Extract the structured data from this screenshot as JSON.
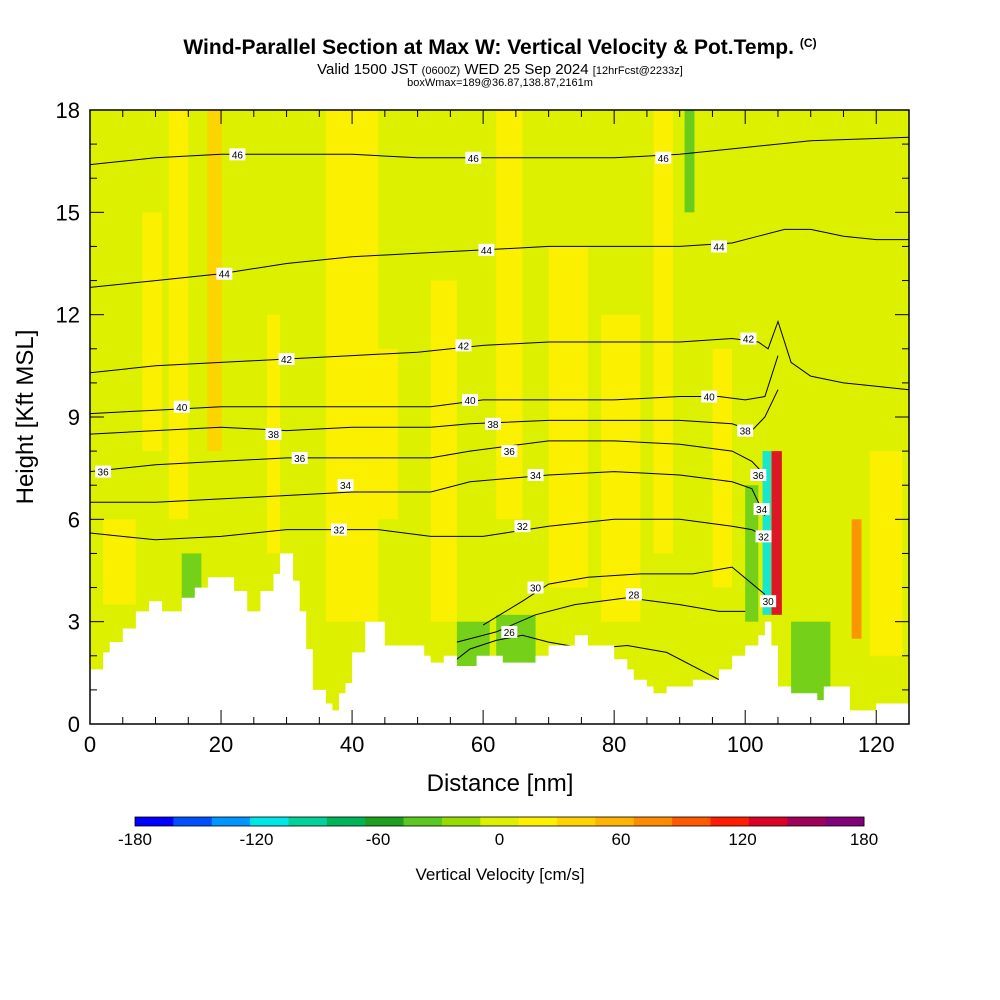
{
  "header": {
    "title": "Wind-Parallel Section at Max W: Vertical Velocity & Pot.Temp.",
    "title_mark": "(C)",
    "valid_label": "Valid 1500 JST",
    "valid_utc": "(0600Z)",
    "valid_date": "WED 25 Sep 2024",
    "forecast_info": "[12hrFcst@2233z]",
    "box_info": "boxWmax=189@36.87,138.87,2161m"
  },
  "chart_data": {
    "type": "heatmap",
    "xlabel": "Distance [nm]",
    "ylabel": "Height [Kft MSL]",
    "xlim": [
      0,
      125
    ],
    "ylim": [
      0,
      18
    ],
    "x_ticks": [
      0,
      20,
      40,
      60,
      80,
      100,
      120
    ],
    "y_ticks": [
      0,
      3,
      6,
      9,
      12,
      15,
      18
    ],
    "grid": false,
    "background_field": "Vertical Velocity [cm/s]",
    "colorbar": {
      "label": "Vertical Velocity [cm/s]",
      "min": -180,
      "max": 180,
      "tick_values": [
        -180,
        -120,
        -60,
        0,
        60,
        120,
        180
      ],
      "colors": [
        "#0000ff",
        "#0050ff",
        "#0096ff",
        "#00e6e6",
        "#00d29a",
        "#00b45a",
        "#1ea01e",
        "#5ac81e",
        "#96dc00",
        "#dcf000",
        "#fff000",
        "#ffd200",
        "#ffb400",
        "#ff8c00",
        "#ff5a00",
        "#ff1e00",
        "#dc0028",
        "#a0005a",
        "#820078"
      ]
    },
    "updraft_columns": [
      {
        "x": 19,
        "w": 2.2,
        "h_bottom": 8,
        "h_top": 18,
        "value": 45,
        "color": "#ffd200"
      },
      {
        "x": 104.8,
        "w": 1.6,
        "h_bottom": 3.2,
        "h_top": 8,
        "value": 150,
        "color": "#dc0028"
      },
      {
        "x": 117,
        "w": 1.5,
        "h_bottom": 2.5,
        "h_top": 6,
        "value": 80,
        "color": "#ff8c00"
      }
    ],
    "downdraft_columns": [
      {
        "x": 103.3,
        "w": 1.3,
        "h_bottom": 3.2,
        "h_top": 8,
        "value": -120,
        "color": "#00e6e6"
      },
      {
        "x": 91.5,
        "w": 1.5,
        "h_bottom": 15,
        "h_top": 18,
        "value": -40,
        "color": "#5ac81e"
      }
    ],
    "terrain": {
      "x": [
        0,
        2,
        2,
        3,
        3,
        5,
        5,
        7,
        7,
        9,
        9,
        11,
        11,
        14,
        14,
        16,
        16,
        18,
        18,
        22,
        22,
        24,
        24,
        26,
        26,
        28,
        28,
        29,
        29,
        31,
        31,
        32,
        32,
        33,
        33,
        34,
        34,
        36,
        36,
        37,
        37,
        38,
        38,
        39,
        39,
        40,
        40,
        42,
        42,
        45,
        45,
        51,
        51,
        52,
        52,
        54,
        54,
        56,
        56,
        59,
        59,
        63,
        63,
        68,
        68,
        70,
        70,
        74,
        74,
        76,
        76,
        80,
        80,
        82,
        82,
        83,
        83,
        85,
        85,
        86,
        86,
        88,
        88,
        92,
        92,
        96,
        96,
        98,
        98,
        100,
        100,
        102,
        102,
        103,
        103,
        104,
        104,
        105,
        105,
        107,
        107,
        111,
        111,
        112,
        112,
        116,
        116,
        120,
        120,
        125
      ],
      "height": [
        1.6,
        1.6,
        2.1,
        2.1,
        2.4,
        2.4,
        2.8,
        2.8,
        3.3,
        3.3,
        3.6,
        3.6,
        3.3,
        3.3,
        3.7,
        3.7,
        4.0,
        4.0,
        4.3,
        4.3,
        3.9,
        3.9,
        3.3,
        3.3,
        3.9,
        3.9,
        4.4,
        4.4,
        5.0,
        5.0,
        4.2,
        4.2,
        3.3,
        3.3,
        2.2,
        2.2,
        1.0,
        1.0,
        0.6,
        0.6,
        0.4,
        0.4,
        0.9,
        0.9,
        1.2,
        1.2,
        2.1,
        2.1,
        3.0,
        3.0,
        2.3,
        2.3,
        2.0,
        2.0,
        1.8,
        1.8,
        2.0,
        2.0,
        1.7,
        1.7,
        2.0,
        2.0,
        1.8,
        1.8,
        2.0,
        2.0,
        2.3,
        2.3,
        2.6,
        2.6,
        2.3,
        2.3,
        1.9,
        1.9,
        1.6,
        1.6,
        1.3,
        1.3,
        1.1,
        1.1,
        0.9,
        0.9,
        1.1,
        1.1,
        1.3,
        1.3,
        1.6,
        1.6,
        2.0,
        2.0,
        2.3,
        2.3,
        2.6,
        2.6,
        3.0,
        3.0,
        2.3,
        2.3,
        1.1,
        1.1,
        0.9,
        0.9,
        0.7,
        0.7,
        1.1,
        1.1,
        0.4,
        0.4,
        0.6,
        0.6,
        0.3
      ]
    },
    "isentropes": [
      {
        "theta": 26,
        "x": [
          54,
          58,
          62,
          66,
          70,
          76,
          82,
          88,
          94,
          98
        ],
        "y": [
          1.6,
          2.2,
          2.45,
          2.6,
          2.4,
          2.2,
          2.3,
          2.1,
          1.5,
          1.1
        ]
      },
      {
        "theta": 28,
        "x": [
          56,
          62,
          68,
          74,
          82,
          90,
          96,
          100
        ],
        "y": [
          2.4,
          2.7,
          3.2,
          3.5,
          3.7,
          3.5,
          3.3,
          3.3
        ]
      },
      {
        "theta": 30,
        "x": [
          60,
          66,
          70,
          76,
          84,
          92,
          98,
          103
        ],
        "y": [
          2.9,
          3.6,
          4.1,
          4.3,
          4.4,
          4.4,
          4.6,
          3.8
        ]
      },
      {
        "theta": 32,
        "x": [
          0,
          10,
          20,
          30,
          37,
          44,
          52,
          60,
          70,
          80,
          90,
          98,
          101,
          103
        ],
        "y": [
          5.6,
          5.4,
          5.5,
          5.7,
          5.7,
          5.7,
          5.5,
          5.5,
          5.8,
          6.0,
          6.0,
          5.8,
          5.7,
          5.5
        ]
      },
      {
        "theta": 34,
        "x": [
          0,
          10,
          20,
          30,
          40,
          52,
          58,
          70,
          80,
          90,
          98,
          101,
          103
        ],
        "y": [
          6.5,
          6.5,
          6.6,
          6.7,
          6.8,
          6.8,
          7.1,
          7.3,
          7.4,
          7.3,
          7.1,
          6.9,
          6.1
        ]
      },
      {
        "theta": 36,
        "x": [
          0,
          10,
          20,
          30,
          40,
          52,
          58,
          70,
          80,
          90,
          98,
          101,
          102.5
        ],
        "y": [
          7.4,
          7.6,
          7.7,
          7.8,
          7.8,
          7.8,
          8.0,
          8.3,
          8.3,
          8.2,
          8.0,
          7.7,
          7.4
        ]
      },
      {
        "theta": 38,
        "x": [
          0,
          10,
          20,
          30,
          40,
          52,
          58,
          70,
          80,
          90,
          98,
          101,
          103,
          105
        ],
        "y": [
          8.5,
          8.6,
          8.7,
          8.6,
          8.7,
          8.7,
          8.8,
          8.9,
          8.9,
          8.9,
          8.8,
          8.6,
          9.0,
          9.8
        ]
      },
      {
        "theta": 40,
        "x": [
          0,
          10,
          20,
          30,
          40,
          52,
          60,
          70,
          80,
          90,
          96,
          100,
          103,
          105
        ],
        "y": [
          9.1,
          9.2,
          9.3,
          9.3,
          9.3,
          9.3,
          9.5,
          9.5,
          9.5,
          9.6,
          9.6,
          9.5,
          9.6,
          10.8
        ]
      },
      {
        "theta": 42,
        "x": [
          0,
          10,
          20,
          30,
          40,
          50,
          60,
          70,
          80,
          90,
          98,
          102,
          103.5,
          105,
          107,
          110,
          115,
          120,
          125
        ],
        "y": [
          10.3,
          10.5,
          10.6,
          10.7,
          10.8,
          10.9,
          11.1,
          11.2,
          11.2,
          11.2,
          11.3,
          11.2,
          11.0,
          11.8,
          10.6,
          10.2,
          10.0,
          9.9,
          9.8
        ]
      },
      {
        "theta": 44,
        "x": [
          0,
          10,
          20,
          30,
          40,
          50,
          60,
          70,
          80,
          90,
          98,
          102,
          106,
          110,
          115,
          120,
          125
        ],
        "y": [
          12.8,
          13.0,
          13.2,
          13.5,
          13.7,
          13.8,
          13.9,
          14.0,
          14.0,
          14.0,
          14.1,
          14.3,
          14.5,
          14.5,
          14.3,
          14.2,
          14.2
        ]
      },
      {
        "theta": 46,
        "x": [
          0,
          10,
          20,
          30,
          40,
          50,
          60,
          70,
          80,
          90,
          100,
          110,
          125
        ],
        "y": [
          16.4,
          16.6,
          16.7,
          16.7,
          16.7,
          16.6,
          16.6,
          16.6,
          16.6,
          16.7,
          16.9,
          17.1,
          17.2
        ]
      }
    ],
    "isentrope_labels": [
      {
        "theta": "46",
        "x": 22.5,
        "y": 16.7
      },
      {
        "theta": "46",
        "x": 58.5,
        "y": 16.6
      },
      {
        "theta": "46",
        "x": 87.5,
        "y": 16.6
      },
      {
        "theta": "44",
        "x": 20.5,
        "y": 13.2
      },
      {
        "theta": "44",
        "x": 60.5,
        "y": 13.9
      },
      {
        "theta": "44",
        "x": 96,
        "y": 14.0
      },
      {
        "theta": "42",
        "x": 30,
        "y": 10.7
      },
      {
        "theta": "42",
        "x": 57,
        "y": 11.1
      },
      {
        "theta": "42",
        "x": 100.5,
        "y": 11.3
      },
      {
        "theta": "40",
        "x": 14,
        "y": 9.3
      },
      {
        "theta": "40",
        "x": 58,
        "y": 9.5
      },
      {
        "theta": "40",
        "x": 94.5,
        "y": 9.6
      },
      {
        "theta": "38",
        "x": 28,
        "y": 8.5
      },
      {
        "theta": "38",
        "x": 61.5,
        "y": 8.8
      },
      {
        "theta": "38",
        "x": 100,
        "y": 8.6
      },
      {
        "theta": "36",
        "x": 2,
        "y": 7.4
      },
      {
        "theta": "36",
        "x": 32,
        "y": 7.8
      },
      {
        "theta": "36",
        "x": 64,
        "y": 8.0
      },
      {
        "theta": "36",
        "x": 102,
        "y": 7.3
      },
      {
        "theta": "34",
        "x": 39,
        "y": 7.0
      },
      {
        "theta": "34",
        "x": 68,
        "y": 7.3
      },
      {
        "theta": "34",
        "x": 102.5,
        "y": 6.3
      },
      {
        "theta": "32",
        "x": 38,
        "y": 5.7
      },
      {
        "theta": "32",
        "x": 66,
        "y": 5.8
      },
      {
        "theta": "32",
        "x": 102.8,
        "y": 5.5
      },
      {
        "theta": "30",
        "x": 68,
        "y": 4.0
      },
      {
        "theta": "30",
        "x": 103.5,
        "y": 3.6
      },
      {
        "theta": "28",
        "x": 83,
        "y": 3.8
      },
      {
        "theta": "26",
        "x": 64,
        "y": 2.7
      }
    ]
  }
}
